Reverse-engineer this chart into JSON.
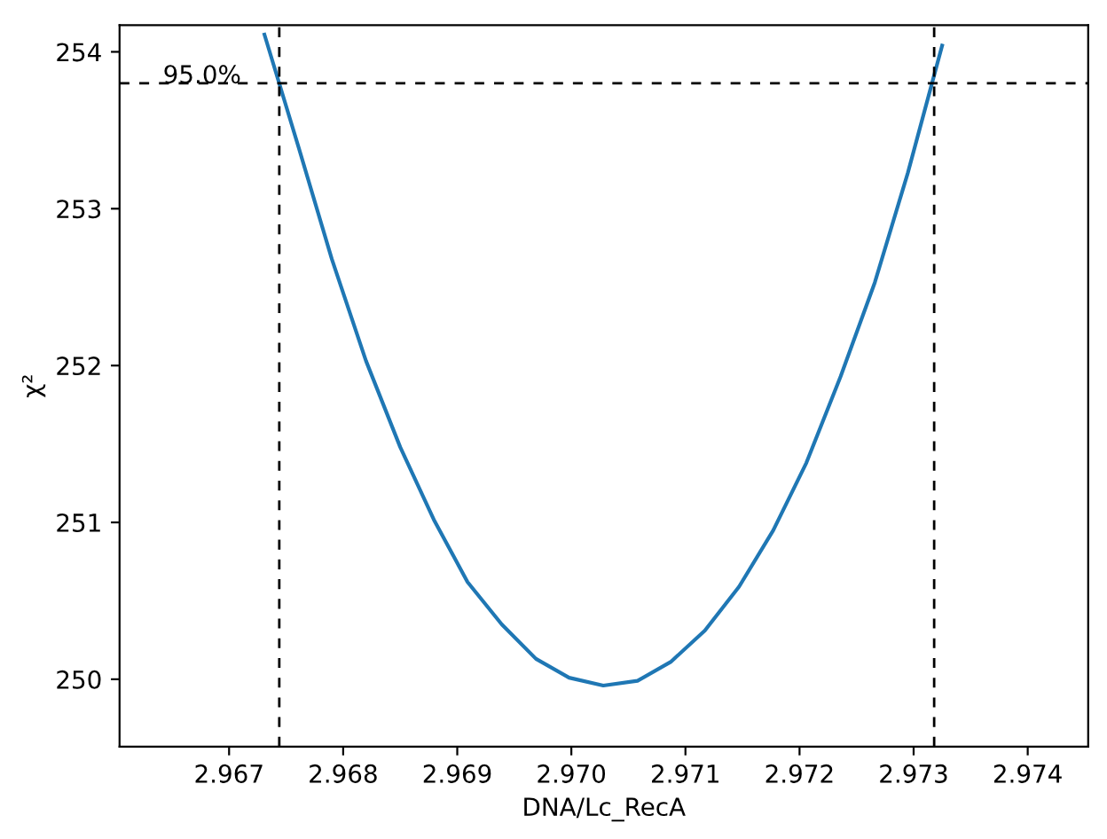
{
  "chart_data": {
    "type": "line",
    "x": [
      2.96731,
      2.96761,
      2.9679,
      2.9682,
      2.9685,
      2.9688,
      2.96909,
      2.96939,
      2.96969,
      2.96998,
      2.97028,
      2.97058,
      2.97087,
      2.97117,
      2.97147,
      2.97177,
      2.97206,
      2.97236,
      2.97266,
      2.97295,
      2.97325
    ],
    "series": [
      {
        "color": "#1f77b4",
        "values": [
          254.11,
          253.39,
          252.68,
          252.03,
          251.48,
          251.01,
          250.62,
          250.35,
          250.13,
          250.01,
          249.96,
          249.99,
          250.11,
          250.31,
          250.59,
          250.95,
          251.38,
          251.93,
          252.53,
          253.23,
          254.04
        ]
      }
    ],
    "xlabel": "DNA/Lc_RecA",
    "ylabel": "χ²",
    "xlim": [
      2.96604,
      2.97453
    ],
    "ylim": [
      249.57,
      254.17
    ],
    "xticks": [
      2.967,
      2.968,
      2.969,
      {
        "value": 2.97,
        "label": "2.970"
      },
      2.971,
      2.972,
      2.973,
      2.974
    ],
    "yticks": [
      250,
      251,
      252,
      253,
      254
    ],
    "ref_lines": [
      {
        "axis": "y",
        "value": 253.8,
        "color": "#000000",
        "line_style": "dashed"
      },
      {
        "axis": "x",
        "value": 2.96744,
        "color": "#000000",
        "line_style": "dashed"
      },
      {
        "axis": "x",
        "value": 2.97318,
        "color": "#000000",
        "line_style": "dashed"
      }
    ],
    "annotations": [
      {
        "text": "95.0%",
        "x": 2.96642,
        "y": 253.8
      }
    ],
    "marker": "none",
    "line_style": "solid"
  }
}
